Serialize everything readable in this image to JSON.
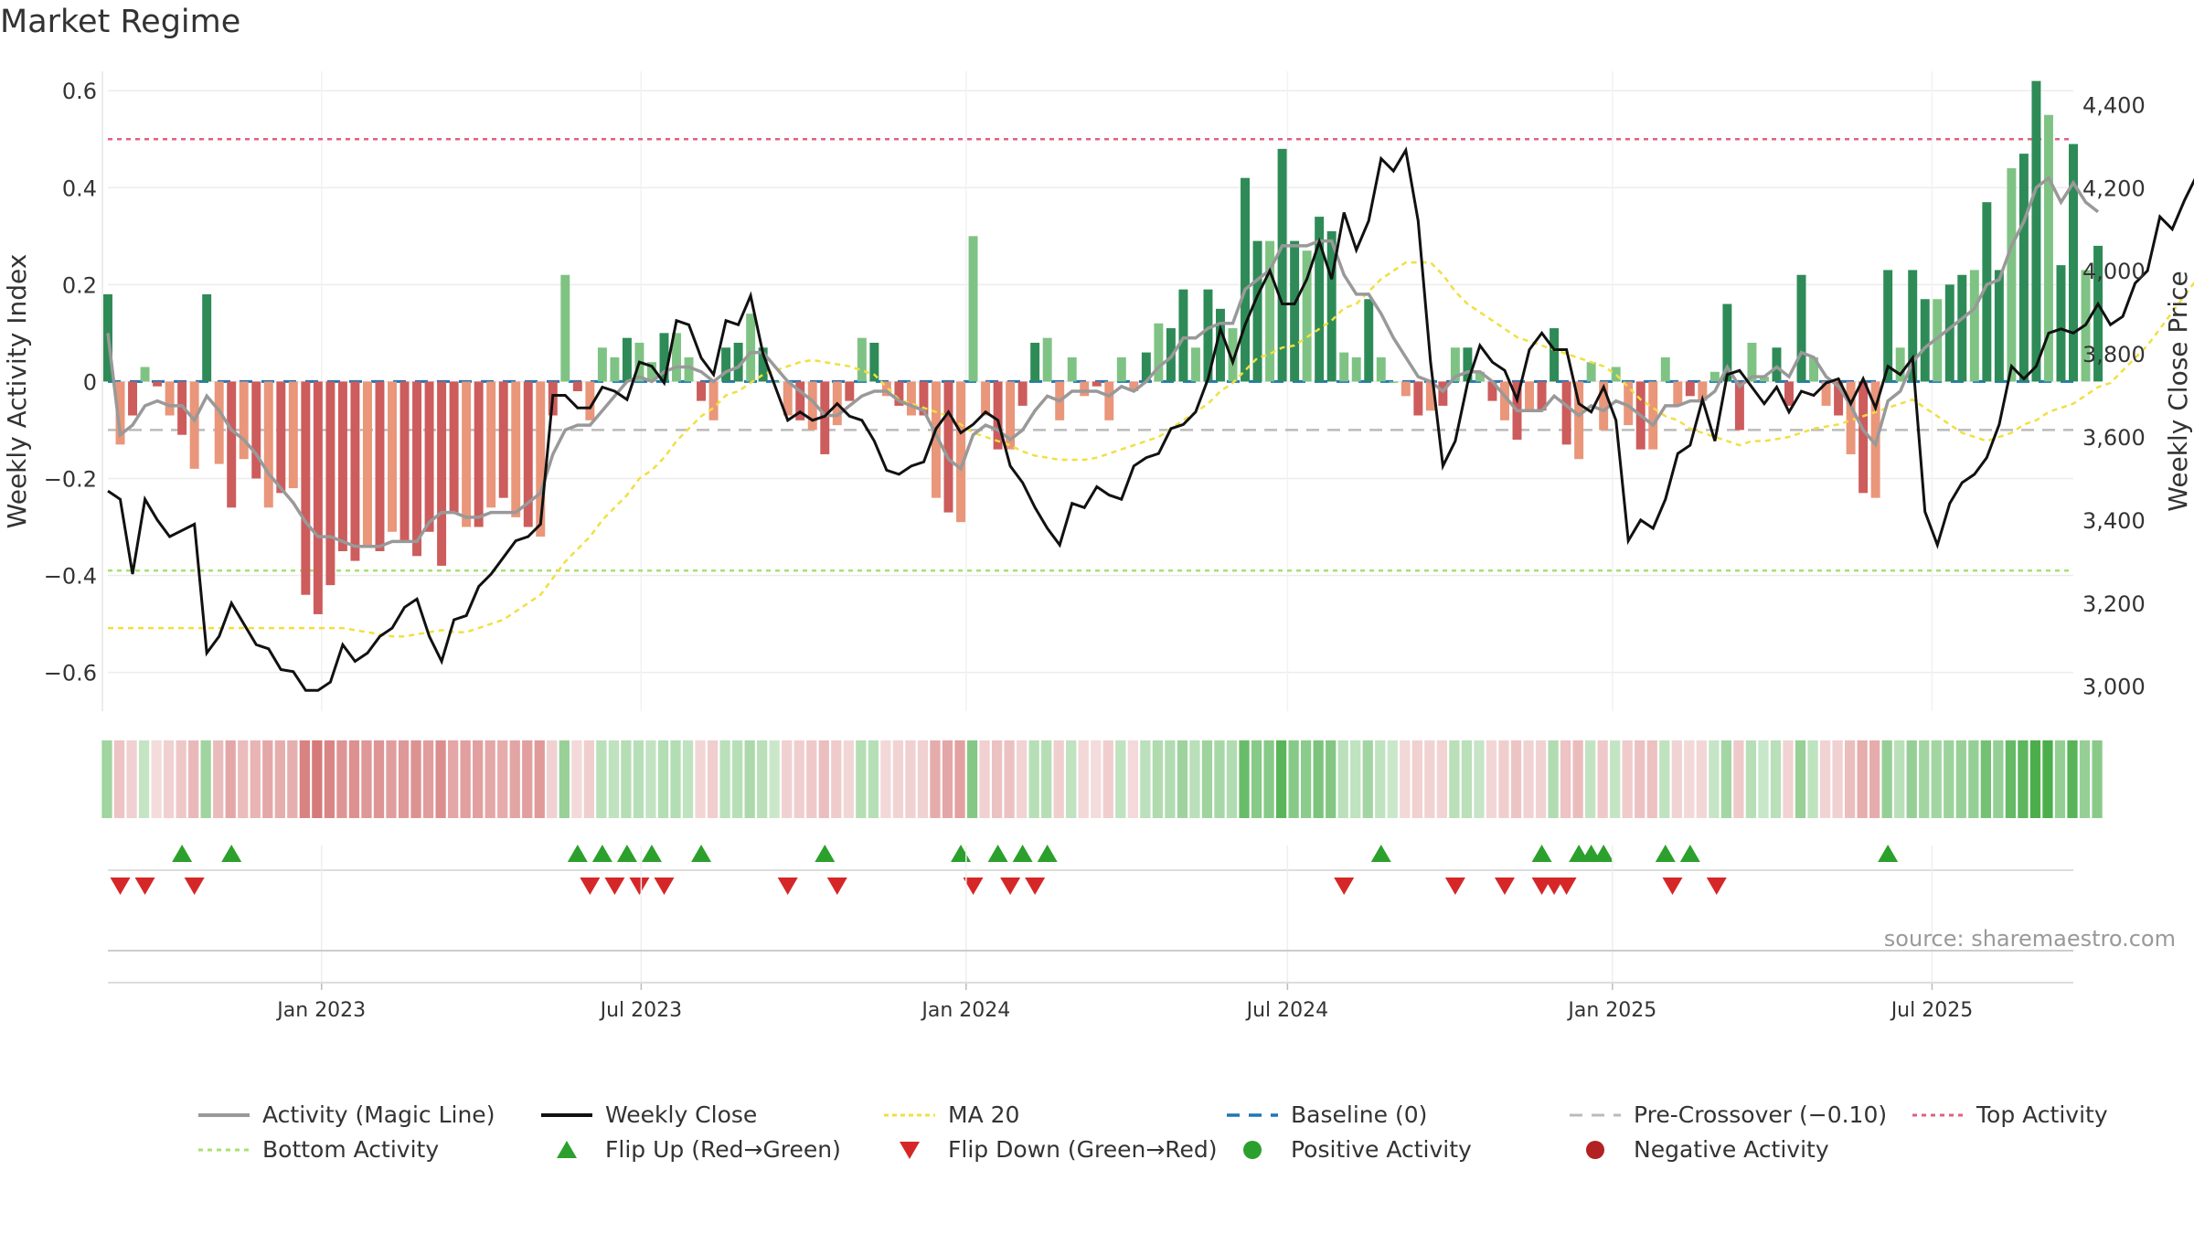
{
  "title": "Market Regime",
  "source": "source: sharemaestro.com",
  "colors": {
    "pos_strong": "#2e8b57",
    "pos_light": "#7fc384",
    "neg_strong": "#cd5c5c",
    "neg_light": "#e9967a",
    "activity_line": "#999999",
    "close_line": "#111111",
    "ma20": "#f0e040",
    "baseline": "#1f77b4",
    "pre_cross": "#bbbbbb",
    "top_activity": "#e06080",
    "bottom_activity": "#a8e070",
    "flip_up": "#2ca02c",
    "flip_down": "#d62728",
    "positive": "#2ca02c",
    "negative": "#b22222"
  },
  "chart_data": {
    "type": "bar",
    "y_left": {
      "label": "Weekly Activity Index",
      "ylim": [
        -0.68,
        0.64
      ],
      "ticks": [
        -0.6,
        -0.4,
        -0.2,
        0,
        0.2,
        0.4,
        0.6
      ],
      "tick_labels": [
        "−0.6",
        "−0.4",
        "−0.2",
        "0",
        "0.2",
        "0.4",
        "0.6"
      ]
    },
    "y_right": {
      "label": "Weekly Close Price",
      "ylim": [
        2940,
        4480
      ],
      "ticks": [
        3000,
        3200,
        3400,
        3600,
        3800,
        4000,
        4200,
        4400
      ],
      "tick_labels": [
        "3,000",
        "3,200",
        "3,400",
        "3,600",
        "3,800",
        "4,000",
        "4,200",
        "4,400"
      ]
    },
    "x_axis": {
      "start": "2022-09-02",
      "end": "2025-09-19",
      "ticks": [
        "2023-01-01",
        "2023-07-01",
        "2024-01-01",
        "2024-07-01",
        "2025-01-01",
        "2025-07-01"
      ],
      "tick_labels": [
        "Jan 2023",
        "Jul 2023",
        "Jan 2024",
        "Jul 2024",
        "Jan 2025",
        "Jul 2025"
      ]
    },
    "reference_lines": {
      "top_activity": 0.5,
      "bottom_activity": -0.39,
      "pre_crossover": -0.1,
      "baseline": 0
    },
    "series": [
      {
        "name": "Weekly Activity",
        "values": [
          0.18,
          -0.13,
          -0.07,
          0.03,
          -0.01,
          -0.07,
          -0.11,
          -0.18,
          0.18,
          -0.17,
          -0.26,
          -0.16,
          -0.2,
          -0.26,
          -0.23,
          -0.22,
          -0.44,
          -0.48,
          -0.42,
          -0.35,
          -0.37,
          -0.34,
          -0.35,
          -0.31,
          -0.33,
          -0.36,
          -0.31,
          -0.38,
          -0.27,
          -0.3,
          -0.3,
          -0.26,
          -0.24,
          -0.28,
          -0.3,
          -0.32,
          -0.07,
          0.22,
          -0.02,
          -0.08,
          0.07,
          0.05,
          0.09,
          0.08,
          0.04,
          0.1,
          0.1,
          0.05,
          -0.04,
          -0.08,
          0.07,
          0.08,
          0.14,
          0.07,
          0,
          -0.07,
          -0.08,
          -0.1,
          -0.15,
          -0.09,
          -0.04,
          0.09,
          0.08,
          -0.03,
          -0.05,
          -0.07,
          -0.07,
          -0.24,
          -0.27,
          -0.29,
          0.3,
          -0.07,
          -0.14,
          -0.14,
          -0.05,
          0.08,
          0.09,
          -0.08,
          0.05,
          -0.03,
          -0.01,
          -0.08,
          0.05,
          -0.02,
          0.06,
          0.12,
          0.11,
          0.19,
          0.07,
          0.19,
          0.15,
          0.11,
          0.42,
          0.29,
          0.29,
          0.48,
          0.29,
          0.27,
          0.34,
          0.31,
          0.06,
          0.05,
          0.17,
          0.05,
          0,
          -0.03,
          -0.07,
          -0.06,
          -0.05,
          0.07,
          0.07,
          0.02,
          -0.04,
          -0.08,
          -0.12,
          -0.06,
          -0.06,
          0.11,
          -0.13,
          -0.16,
          0.04,
          -0.1,
          0.03,
          -0.09,
          -0.14,
          -0.14,
          0.05,
          -0.05,
          -0.03,
          -0.04,
          0.02,
          0.16,
          -0.1,
          0.08,
          0.01,
          0.07,
          -0.05,
          0.22,
          0.05,
          -0.05,
          -0.07,
          -0.15,
          -0.23,
          -0.24,
          0.23,
          0.07,
          0.23,
          0.17,
          0.17,
          0.2,
          0.22,
          0.23,
          0.37,
          0.23,
          0.44,
          0.47,
          0.62,
          0.55,
          0.24,
          0.49,
          0.23,
          0.28
        ]
      },
      {
        "name": "Activity (Magic Line)",
        "values": [
          0.1,
          -0.11,
          -0.09,
          -0.05,
          -0.04,
          -0.05,
          -0.05,
          -0.08,
          -0.03,
          -0.06,
          -0.1,
          -0.12,
          -0.15,
          -0.19,
          -0.22,
          -0.25,
          -0.29,
          -0.32,
          -0.32,
          -0.33,
          -0.34,
          -0.34,
          -0.34,
          -0.33,
          -0.33,
          -0.33,
          -0.29,
          -0.27,
          -0.27,
          -0.28,
          -0.28,
          -0.27,
          -0.27,
          -0.27,
          -0.25,
          -0.23,
          -0.15,
          -0.1,
          -0.09,
          -0.09,
          -0.06,
          -0.03,
          0.0,
          0.01,
          0.0,
          0.02,
          0.03,
          0.03,
          0.02,
          0.0,
          0.02,
          0.03,
          0.06,
          0.06,
          0.03,
          0.0,
          -0.02,
          -0.04,
          -0.07,
          -0.07,
          -0.05,
          -0.03,
          -0.02,
          -0.02,
          -0.04,
          -0.05,
          -0.06,
          -0.11,
          -0.16,
          -0.18,
          -0.11,
          -0.09,
          -0.1,
          -0.12,
          -0.1,
          -0.06,
          -0.03,
          -0.04,
          -0.02,
          -0.02,
          -0.02,
          -0.03,
          -0.01,
          -0.02,
          0.0,
          0.03,
          0.05,
          0.09,
          0.09,
          0.11,
          0.12,
          0.12,
          0.19,
          0.21,
          0.23,
          0.28,
          0.28,
          0.28,
          0.29,
          0.29,
          0.22,
          0.18,
          0.18,
          0.14,
          0.09,
          0.05,
          0.01,
          0.0,
          -0.02,
          0.01,
          0.02,
          0.02,
          0.0,
          -0.03,
          -0.06,
          -0.06,
          -0.06,
          -0.03,
          -0.05,
          -0.07,
          -0.05,
          -0.06,
          -0.04,
          -0.05,
          -0.07,
          -0.09,
          -0.05,
          -0.05,
          -0.04,
          -0.04,
          -0.02,
          0.03,
          -0.01,
          0.01,
          0.01,
          0.03,
          0.01,
          0.06,
          0.05,
          0.01,
          -0.01,
          -0.05,
          -0.1,
          -0.13,
          -0.04,
          -0.02,
          0.04,
          0.07,
          0.09,
          0.11,
          0.13,
          0.15,
          0.2,
          0.21,
          0.28,
          0.33,
          0.4,
          0.42,
          0.37,
          0.41,
          0.37,
          0.35
        ]
      },
      {
        "name": "Weekly Close",
        "values": [
          3470,
          3450,
          3270,
          3450,
          3400,
          3360,
          3375,
          3390,
          3080,
          3120,
          3200,
          3150,
          3100,
          3090,
          3040,
          3035,
          2990,
          2990,
          3010,
          3100,
          3060,
          3080,
          3120,
          3140,
          3190,
          3210,
          3120,
          3060,
          3160,
          3170,
          3240,
          3270,
          3310,
          3350,
          3360,
          3390,
          3700,
          3700,
          3670,
          3670,
          3720,
          3710,
          3690,
          3780,
          3770,
          3730,
          3880,
          3870,
          3790,
          3750,
          3880,
          3870,
          3940,
          3800,
          3720,
          3640,
          3660,
          3640,
          3650,
          3680,
          3650,
          3640,
          3590,
          3520,
          3510,
          3530,
          3540,
          3620,
          3660,
          3610,
          3630,
          3660,
          3640,
          3530,
          3490,
          3430,
          3380,
          3340,
          3440,
          3430,
          3480,
          3460,
          3450,
          3530,
          3550,
          3560,
          3620,
          3630,
          3660,
          3740,
          3860,
          3780,
          3870,
          3940,
          4000,
          3920,
          3920,
          3980,
          4070,
          3980,
          4140,
          4050,
          4120,
          4270,
          4240,
          4290,
          4120,
          3780,
          3530,
          3590,
          3730,
          3820,
          3780,
          3760,
          3690,
          3810,
          3850,
          3810,
          3810,
          3680,
          3660,
          3720,
          3640,
          3350,
          3400,
          3380,
          3450,
          3560,
          3580,
          3690,
          3590,
          3750,
          3760,
          3720,
          3680,
          3720,
          3660,
          3710,
          3700,
          3730,
          3740,
          3680,
          3740,
          3670,
          3770,
          3750,
          3790,
          3420,
          3340,
          3440,
          3490,
          3510,
          3550,
          3630,
          3770,
          3740,
          3770,
          3850,
          3860,
          3850,
          3870,
          3920,
          3870,
          3890,
          3970,
          4000,
          4130,
          4100,
          4170,
          4230,
          4210,
          4300,
          4270,
          4290,
          4300,
          4320,
          4320,
          4380,
          4360,
          4400
        ]
      },
      {
        "name": "MA 20",
        "values": [
          3140,
          3140,
          3140,
          3140,
          3140,
          3140,
          3140,
          3140,
          3140,
          3140,
          3140,
          3140,
          3140,
          3140,
          3140,
          3140,
          3140,
          3140,
          3140,
          3140,
          3135,
          3130,
          3125,
          3120,
          3120,
          3125,
          3130,
          3135,
          3130,
          3130,
          3140,
          3150,
          3160,
          3180,
          3200,
          3220,
          3260,
          3300,
          3330,
          3360,
          3400,
          3430,
          3460,
          3500,
          3520,
          3550,
          3590,
          3620,
          3650,
          3670,
          3700,
          3710,
          3730,
          3750,
          3760,
          3770,
          3780,
          3785,
          3780,
          3775,
          3770,
          3760,
          3750,
          3720,
          3690,
          3680,
          3670,
          3660,
          3650,
          3630,
          3610,
          3600,
          3590,
          3580,
          3565,
          3555,
          3550,
          3545,
          3545,
          3545,
          3550,
          3560,
          3570,
          3580,
          3590,
          3600,
          3620,
          3640,
          3660,
          3680,
          3710,
          3730,
          3760,
          3790,
          3800,
          3815,
          3820,
          3840,
          3860,
          3880,
          3910,
          3920,
          3950,
          3980,
          4000,
          4020,
          4020,
          4020,
          3990,
          3950,
          3920,
          3900,
          3880,
          3860,
          3840,
          3830,
          3820,
          3810,
          3800,
          3790,
          3780,
          3770,
          3750,
          3720,
          3690,
          3670,
          3650,
          3640,
          3620,
          3610,
          3600,
          3590,
          3580,
          3590,
          3590,
          3595,
          3600,
          3610,
          3620,
          3625,
          3630,
          3640,
          3650,
          3660,
          3670,
          3680,
          3690,
          3670,
          3650,
          3630,
          3610,
          3600,
          3590,
          3600,
          3610,
          3630,
          3640,
          3660,
          3670,
          3680,
          3700,
          3720,
          3730,
          3760,
          3790,
          3820,
          3860,
          3900,
          3940,
          3980,
          4020,
          4060,
          4100,
          4130,
          4160,
          4190
        ]
      }
    ],
    "flip_up_dates": [
      "2022-10-14",
      "2022-11-11",
      "2023-05-26",
      "2023-06-09",
      "2023-06-23",
      "2023-07-07",
      "2023-08-04",
      "2023-10-13",
      "2023-12-29",
      "2024-01-19",
      "2024-02-02",
      "2024-02-16",
      "2024-08-23",
      "2024-11-22",
      "2024-12-13",
      "2024-12-20",
      "2024-12-27",
      "2025-01-31",
      "2025-02-14",
      "2025-06-06"
    ],
    "flip_down_dates": [
      "2022-09-09",
      "2022-09-23",
      "2022-10-21",
      "2023-06-02",
      "2023-06-16",
      "2023-06-30",
      "2023-07-14",
      "2023-09-22",
      "2023-10-20",
      "2024-01-05",
      "2024-01-26",
      "2024-02-09",
      "2024-08-02",
      "2024-10-04",
      "2024-11-01",
      "2024-11-22",
      "2024-11-29",
      "2024-12-06",
      "2025-02-04",
      "2025-03-01"
    ]
  },
  "legend": [
    {
      "key": "activity",
      "label": "Activity (Magic Line)"
    },
    {
      "key": "close",
      "label": "Weekly Close"
    },
    {
      "key": "ma20",
      "label": "MA 20"
    },
    {
      "key": "baseline",
      "label": "Baseline (0)"
    },
    {
      "key": "precross",
      "label": "Pre-Crossover (−0.10)"
    },
    {
      "key": "top",
      "label": "Top Activity"
    },
    {
      "key": "bottom",
      "label": "Bottom Activity"
    },
    {
      "key": "flipup",
      "label": "Flip Up (Red→Green)"
    },
    {
      "key": "flipdown",
      "label": "Flip Down (Green→Red)"
    },
    {
      "key": "positive",
      "label": "Positive Activity"
    },
    {
      "key": "negative",
      "label": "Negative Activity"
    }
  ]
}
